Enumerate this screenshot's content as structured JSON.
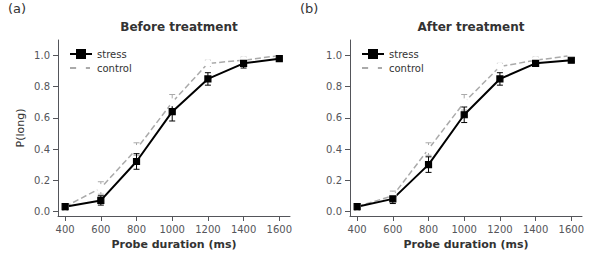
{
  "chart_data": [
    {
      "type": "line",
      "title": "Before treatment",
      "annotation": "(a)",
      "xlabel": "Probe duration (ms)",
      "ylabel": "P(long)",
      "x": [
        400,
        600,
        800,
        1000,
        1200,
        1400,
        1600
      ],
      "series": [
        {
          "name": "control",
          "color": "#aaaaaa",
          "marker": "open_circle",
          "line_style": "dashed",
          "values": [
            0.03,
            0.15,
            0.4,
            0.7,
            0.95,
            0.97,
            1.0
          ],
          "errors": [
            0.02,
            0.04,
            0.04,
            0.05,
            0.02,
            0.02,
            0.01
          ]
        },
        {
          "name": "stress",
          "color": "#000000",
          "marker": "square",
          "line_style": "solid",
          "values": [
            0.03,
            0.07,
            0.32,
            0.64,
            0.85,
            0.95,
            0.98
          ],
          "errors": [
            0.02,
            0.03,
            0.05,
            0.06,
            0.04,
            0.03,
            0.01
          ]
        }
      ],
      "xlim": [
        360,
        1660
      ],
      "ylim": [
        -0.03,
        1.1
      ],
      "xticks": [
        400,
        600,
        800,
        1000,
        1200,
        1400,
        1600
      ],
      "yticks": [
        {
          "value": 0.0,
          "label": "0.0"
        },
        0.2,
        0.4,
        0.6,
        0.8,
        {
          "value": 1.0,
          "label": "1.0"
        }
      ],
      "legend": "upper left",
      "grid": false
    },
    {
      "type": "line",
      "title": "After treatment",
      "annotation": "(b)",
      "xlabel": "Probe duration (ms)",
      "x": [
        400,
        600,
        800,
        1000,
        1200,
        1400,
        1600
      ],
      "series": [
        {
          "name": "control",
          "color": "#aaaaaa",
          "marker": "open_circle",
          "line_style": "dashed",
          "values": [
            0.03,
            0.1,
            0.4,
            0.7,
            0.93,
            0.97,
            1.0
          ],
          "errors": [
            0.02,
            0.03,
            0.04,
            0.05,
            0.02,
            0.02,
            0.01
          ]
        },
        {
          "name": "stress",
          "color": "#000000",
          "marker": "square",
          "line_style": "solid",
          "values": [
            0.03,
            0.08,
            0.3,
            0.62,
            0.85,
            0.95,
            0.97
          ],
          "errors": [
            0.02,
            0.03,
            0.05,
            0.05,
            0.04,
            0.02,
            0.01
          ]
        }
      ],
      "xlim": [
        360,
        1660
      ],
      "ylim": [
        -0.03,
        1.1
      ],
      "xticks": [
        400,
        600,
        800,
        1000,
        1200,
        1400,
        1600
      ],
      "yticks": [
        {
          "value": 0.0,
          "label": "0.0"
        },
        0.2,
        0.4,
        0.6,
        0.8,
        {
          "value": 1.0,
          "label": "1.0"
        }
      ],
      "legend": "upper left",
      "grid": false
    }
  ]
}
